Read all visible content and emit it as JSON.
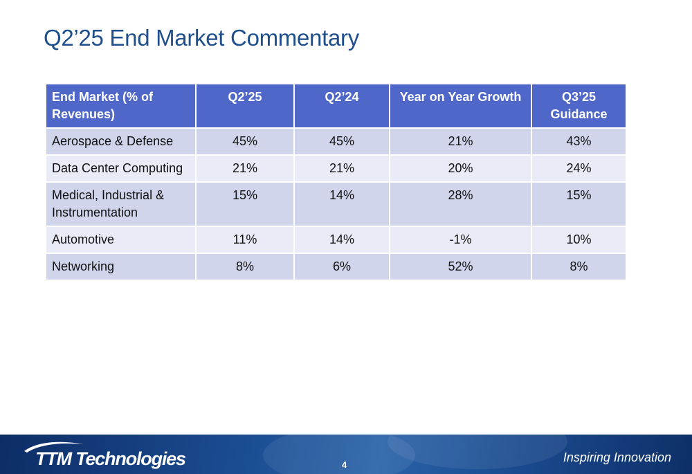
{
  "slide": {
    "title": "Q2’25 End Market Commentary",
    "page_number": "4"
  },
  "table": {
    "headers": [
      "End Market (% of Revenues)",
      "Q2’25",
      "Q2’24",
      "Year on Year Growth",
      "Q3’25 Guidance"
    ],
    "rows": [
      [
        "Aerospace & Defense",
        "45%",
        "45%",
        "21%",
        "43%"
      ],
      [
        "Data Center Computing",
        "21%",
        "21%",
        "20%",
        "24%"
      ],
      [
        "Medical, Industrial & Instrumentation",
        "15%",
        "14%",
        "28%",
        "15%"
      ],
      [
        "Automotive",
        "11%",
        "14%",
        "-1%",
        "10%"
      ],
      [
        "Networking",
        "8%",
        "6%",
        "52%",
        "8%"
      ]
    ],
    "colors": {
      "header_bg": "#4f67c8",
      "row_odd_bg": "#d0d5ec",
      "row_even_bg": "#e9ebf6"
    }
  },
  "footer": {
    "logo_text": "TTM Technologies",
    "tagline": "Inspiring Innovation",
    "colors": {
      "bar_dark": "#0d2d66",
      "bar_light": "#2a62a8",
      "title": "#1f4e8c"
    }
  }
}
